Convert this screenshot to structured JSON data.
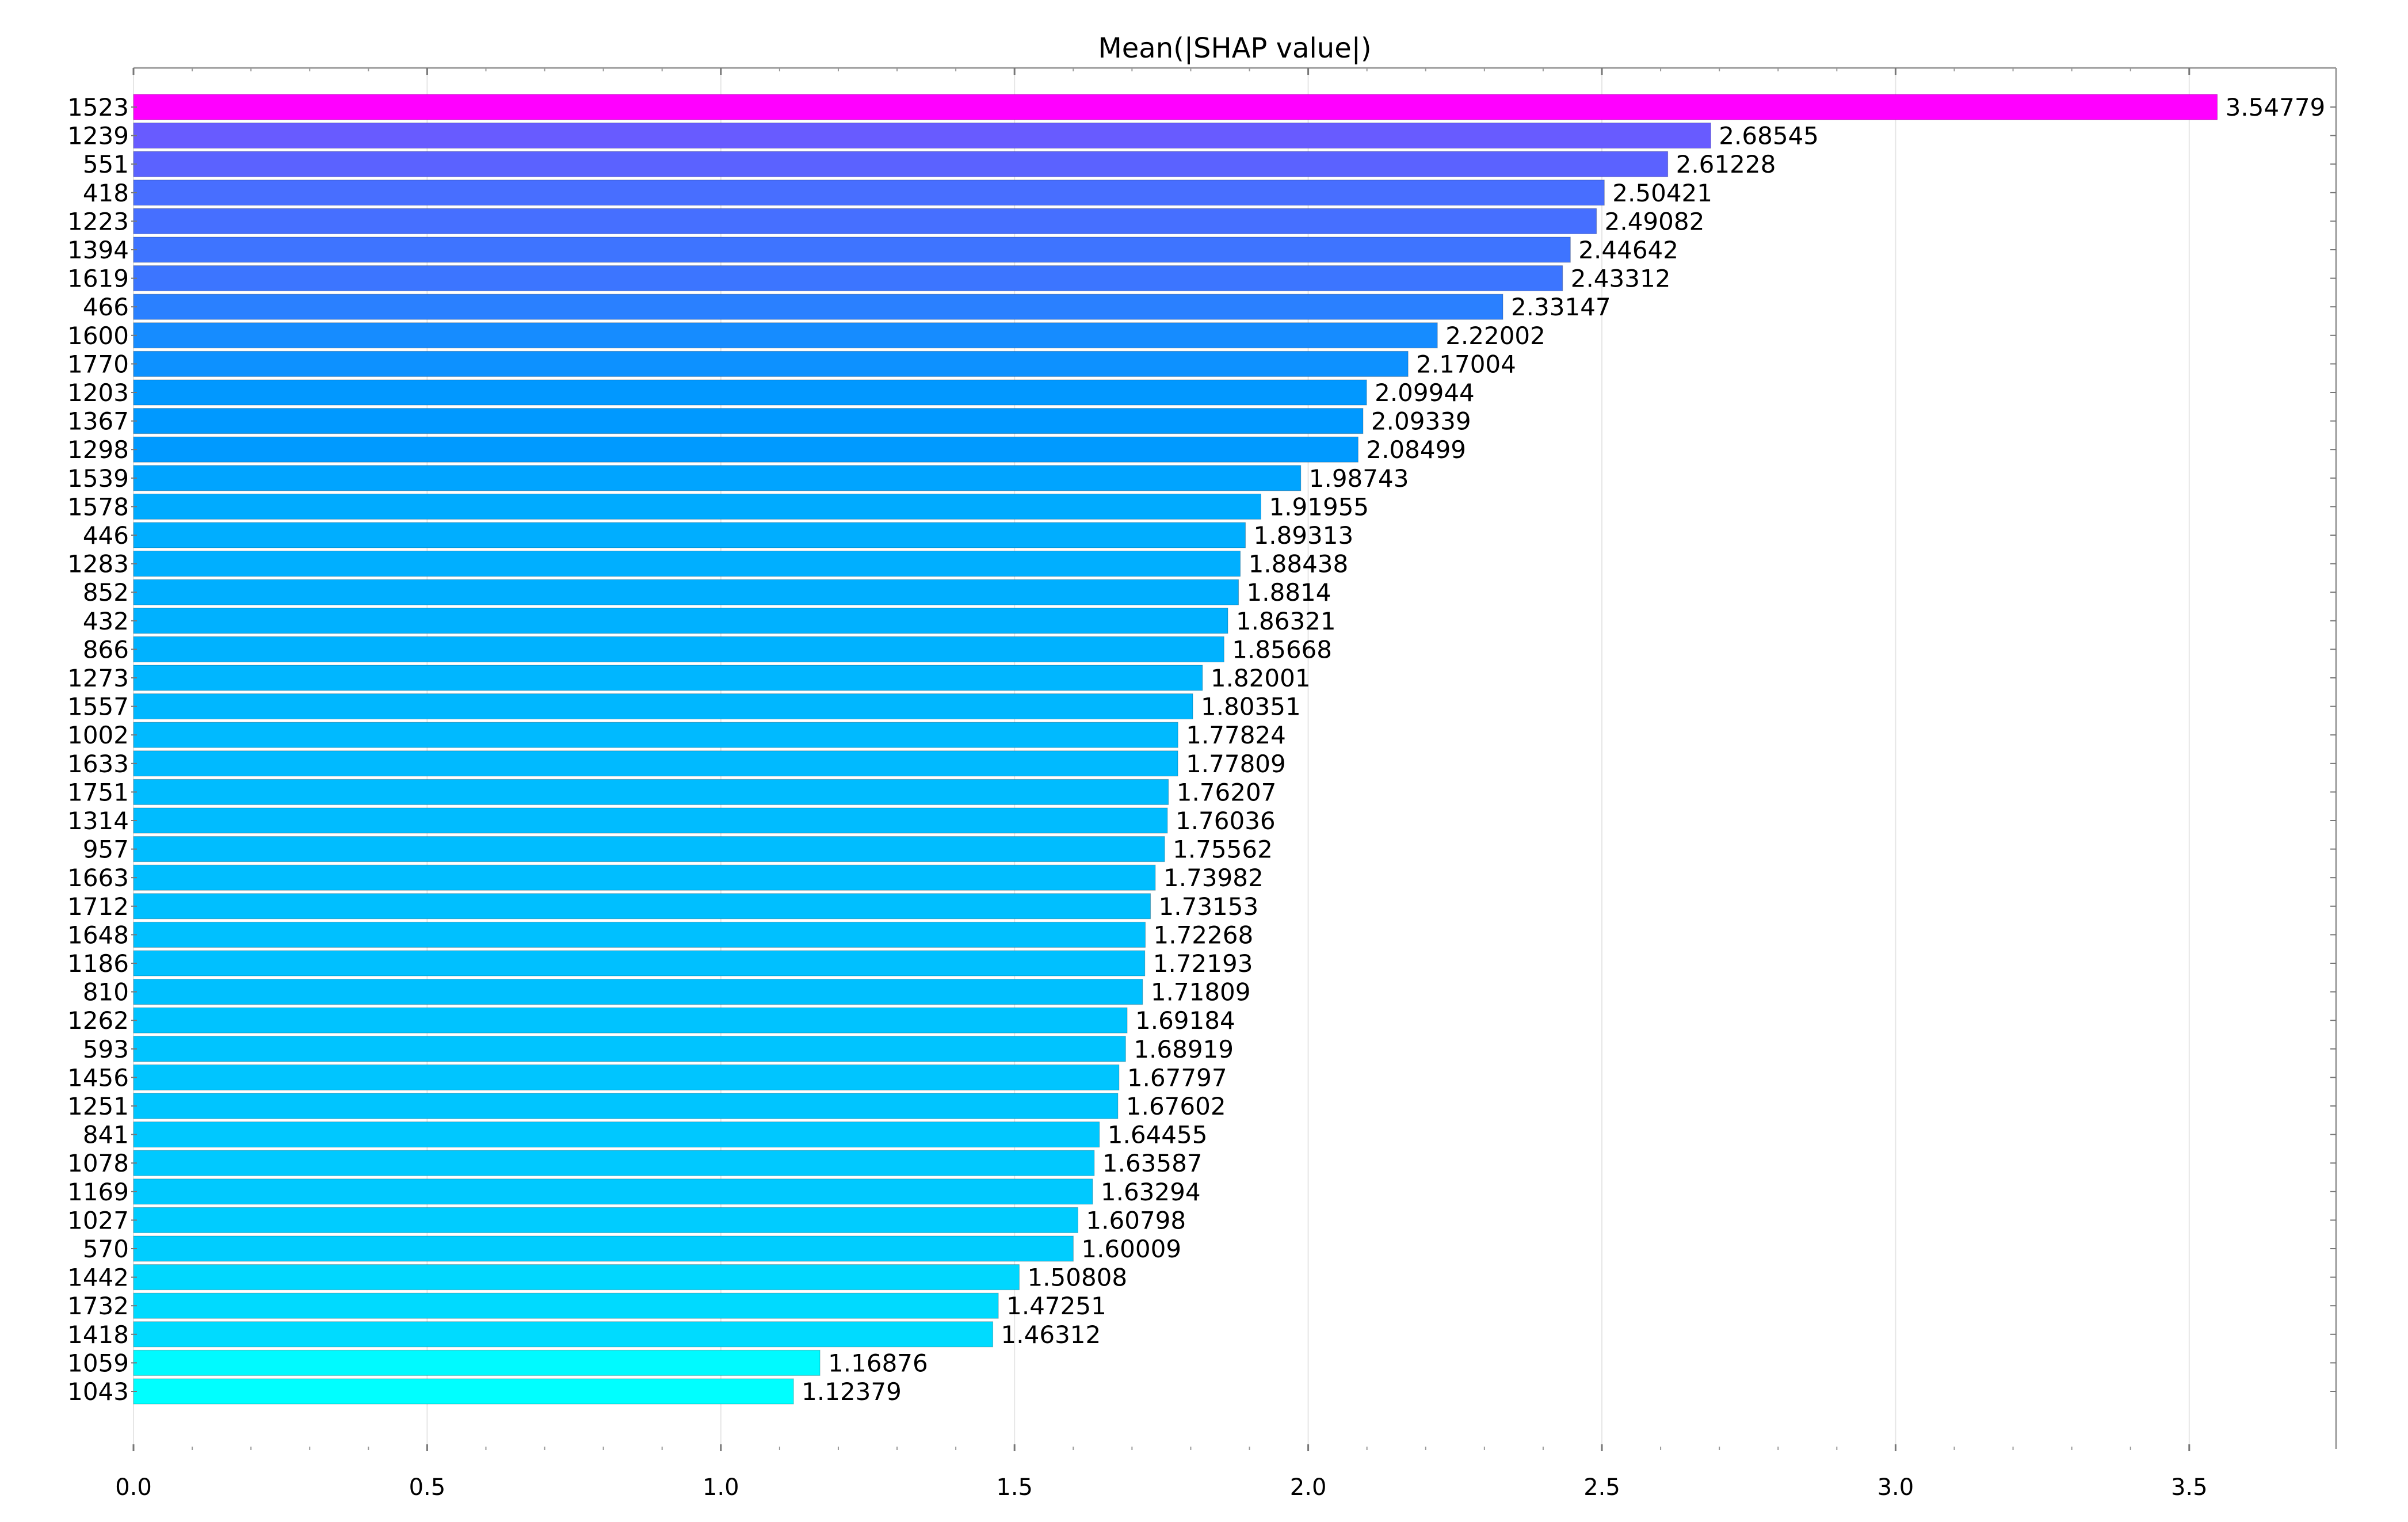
{
  "chart_data": {
    "type": "bar",
    "orientation": "horizontal",
    "title": "Mean(|SHAP value|)",
    "xlabel": "",
    "ylabel": "",
    "xlim": [
      0,
      3.75
    ],
    "xticks": [
      0.0,
      0.5,
      1.0,
      1.5,
      2.0,
      2.5,
      3.0,
      3.5
    ],
    "xtick_labels": [
      "0.0",
      "0.5",
      "1.0",
      "1.5",
      "2.0",
      "2.5",
      "3.0",
      "3.5"
    ],
    "grid": true,
    "categories": [
      "1523",
      "1239",
      "551",
      "418",
      "1223",
      "1394",
      "1619",
      "466",
      "1600",
      "1770",
      "1203",
      "1367",
      "1298",
      "1539",
      "1578",
      "446",
      "1283",
      "852",
      "432",
      "866",
      "1273",
      "1557",
      "1002",
      "1633",
      "1751",
      "1314",
      "957",
      "1663",
      "1712",
      "1648",
      "1186",
      "810",
      "1262",
      "593",
      "1456",
      "1251",
      "841",
      "1078",
      "1169",
      "1027",
      "570",
      "1442",
      "1732",
      "1418",
      "1059",
      "1043"
    ],
    "values": [
      3.54779,
      2.68545,
      2.61228,
      2.50421,
      2.49082,
      2.44642,
      2.43312,
      2.33147,
      2.22002,
      2.17004,
      2.09944,
      2.09339,
      2.08499,
      1.98743,
      1.91955,
      1.89313,
      1.88438,
      1.8814,
      1.86321,
      1.85668,
      1.82001,
      1.80351,
      1.77824,
      1.77809,
      1.76207,
      1.76036,
      1.75562,
      1.73982,
      1.73153,
      1.72268,
      1.72193,
      1.71809,
      1.69184,
      1.68919,
      1.67797,
      1.67602,
      1.64455,
      1.63587,
      1.63294,
      1.60798,
      1.60009,
      1.50808,
      1.47251,
      1.46312,
      1.16876,
      1.12379
    ],
    "value_labels": [
      "3.54779",
      "2.68545",
      "2.61228",
      "2.50421",
      "2.49082",
      "2.44642",
      "2.43312",
      "2.33147",
      "2.22002",
      "2.17004",
      "2.09944",
      "2.09339",
      "2.08499",
      "1.98743",
      "1.91955",
      "1.89313",
      "1.88438",
      "1.8814",
      "1.86321",
      "1.85668",
      "1.82001",
      "1.80351",
      "1.77824",
      "1.77809",
      "1.76207",
      "1.76036",
      "1.75562",
      "1.73982",
      "1.73153",
      "1.72268",
      "1.72193",
      "1.71809",
      "1.69184",
      "1.68919",
      "1.67797",
      "1.67602",
      "1.64455",
      "1.63587",
      "1.63294",
      "1.60798",
      "1.60009",
      "1.50808",
      "1.47251",
      "1.46312",
      "1.16876",
      "1.12379"
    ],
    "colors": {
      "top": "#ff00ff",
      "mid": "#0099ff",
      "bottom": "#00ffff"
    }
  }
}
